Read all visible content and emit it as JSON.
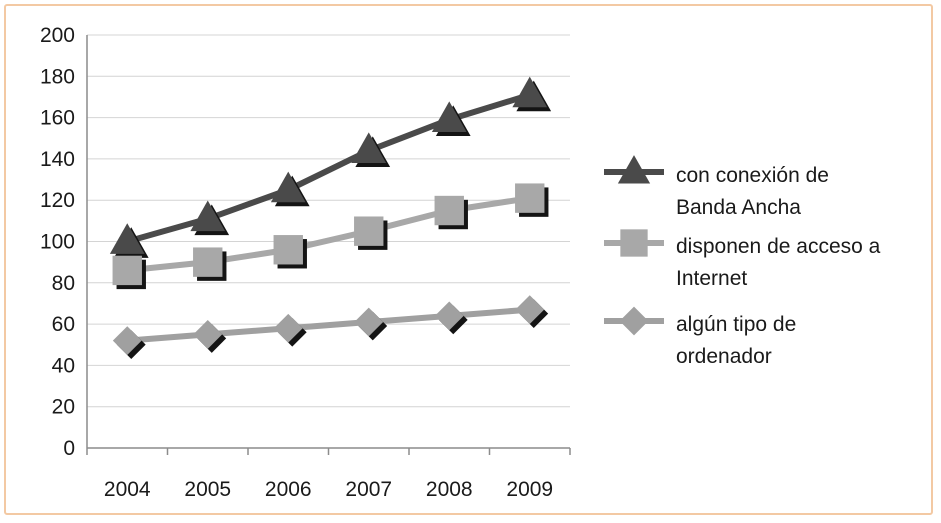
{
  "chart_data": {
    "type": "line",
    "title": "",
    "xlabel": "",
    "ylabel": "",
    "categories": [
      "2004",
      "2005",
      "2006",
      "2007",
      "2008",
      "2009"
    ],
    "ylim": [
      0,
      200
    ],
    "yticks": [
      0,
      20,
      40,
      60,
      80,
      100,
      120,
      140,
      160,
      180,
      200
    ],
    "grid": true,
    "legend_position": "right",
    "series": [
      {
        "name_lines": [
          "con conexión de",
          "Banda Ancha"
        ],
        "marker": "triangle",
        "color": "#4a4a4a",
        "values": [
          100,
          111,
          125,
          144,
          159,
          171
        ]
      },
      {
        "name_lines": [
          "disponen de acceso a",
          "Internet"
        ],
        "marker": "square",
        "color": "#a8a8a8",
        "values": [
          86,
          90,
          96,
          105,
          115,
          121
        ]
      },
      {
        "name_lines": [
          "algún tipo de",
          "ordenador"
        ],
        "marker": "diamond",
        "color": "#a0a0a0",
        "values": [
          52,
          55,
          58,
          61,
          64,
          67
        ]
      }
    ]
  }
}
